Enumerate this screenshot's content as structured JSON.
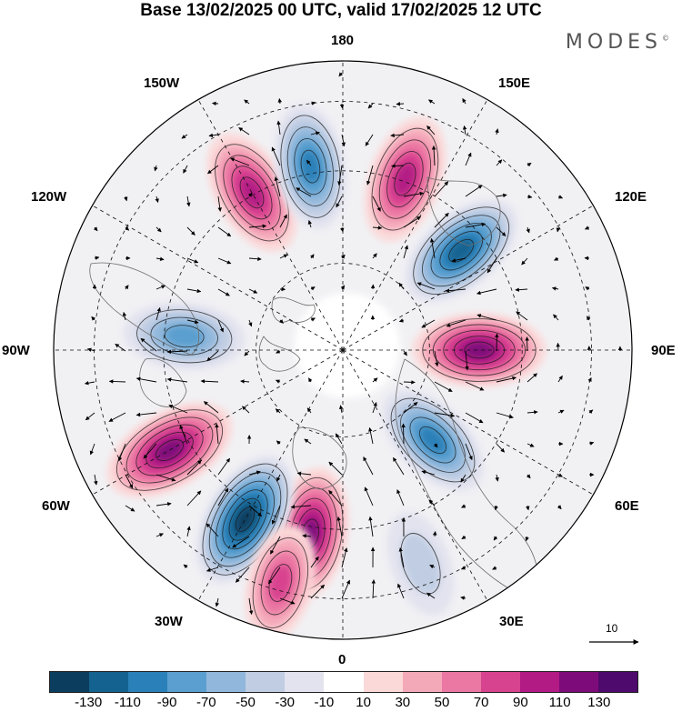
{
  "title": "Base 13/02/2025 00 UTC, valid 17/02/2025 12 UTC",
  "brand": {
    "name": "MODES",
    "mark": "©"
  },
  "lon_labels": {
    "180": "180",
    "150E": "150E",
    "120E": "120E",
    "90E": "90E",
    "60E": "60E",
    "30E": "30E",
    "0": "0",
    "30W": "30W",
    "60W": "60W",
    "90W": "90W",
    "120W": "120W",
    "150W": "150W"
  },
  "reference_vector": {
    "value": "10"
  },
  "colorbar": {
    "ticks": [
      "-130",
      "-110",
      "-90",
      "-70",
      "-50",
      "-30",
      "-10",
      "10",
      "30",
      "50",
      "70",
      "90",
      "110",
      "130"
    ],
    "colors": [
      "#0b3d5e",
      "#14628f",
      "#2a80b8",
      "#5a9fcf",
      "#91b8dc",
      "#c0cde3",
      "#e3e3ef",
      "#ffffff",
      "#fbd9d9",
      "#f4a9b9",
      "#eb77a3",
      "#d8438f",
      "#b21a84",
      "#7e0b7a",
      "#4e0a6c"
    ]
  },
  "anomaly_centers": [
    {
      "lon": "150W",
      "sign": "positive",
      "peak": 100
    },
    {
      "lon": "170W",
      "sign": "negative",
      "peak": -90
    },
    {
      "lon": "160E",
      "sign": "positive",
      "peak": 100
    },
    {
      "lon": "130E",
      "sign": "negative",
      "peak": -110
    },
    {
      "lon": "90E",
      "sign": "positive",
      "peak": 110
    },
    {
      "lon": "45E",
      "sign": "negative",
      "peak": -90
    },
    {
      "lon": "10W",
      "sign": "positive",
      "peak": 110
    },
    {
      "lon": "30W",
      "sign": "negative",
      "peak": -130
    },
    {
      "lon": "60W",
      "sign": "positive",
      "peak": 120
    },
    {
      "lon": "95W",
      "sign": "negative",
      "peak": -80
    },
    {
      "lon": "15W",
      "sign": "positive",
      "peak": 70
    },
    {
      "lon": "20E",
      "sign": "negative",
      "peak": -40
    }
  ]
}
